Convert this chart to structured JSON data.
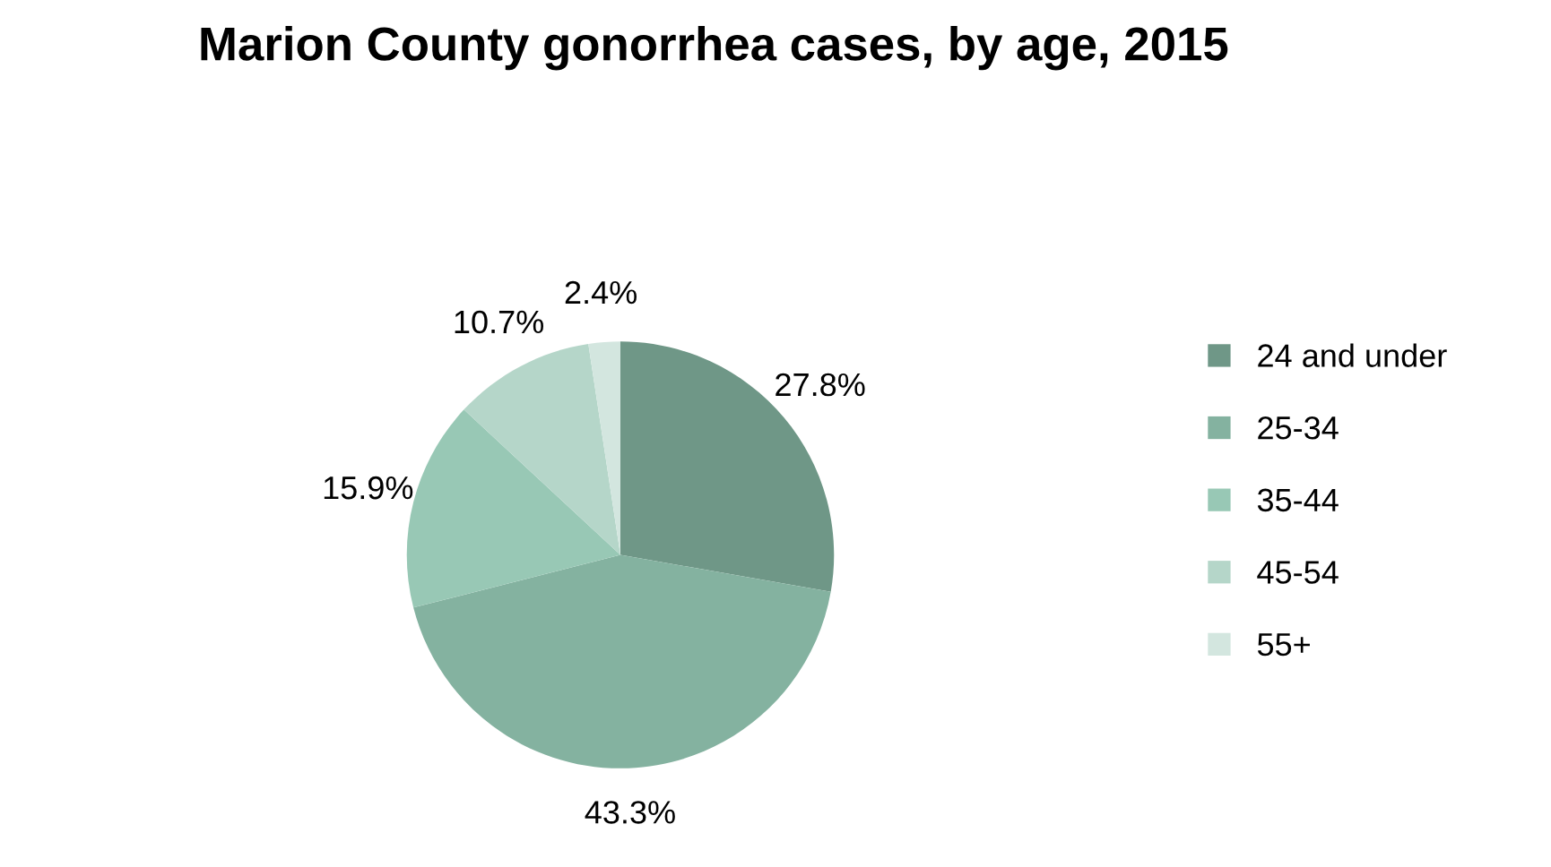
{
  "chart_data": {
    "type": "pie",
    "title": "Marion County gonorrhea cases, by age, 2015",
    "categories": [
      "24 and under",
      "25-34",
      "35-44",
      "45-54",
      "55+"
    ],
    "values": [
      27.8,
      43.3,
      15.9,
      10.7,
      2.4
    ],
    "value_labels": [
      "27.8%",
      "43.3%",
      "15.9%",
      "10.7%",
      "2.4%"
    ],
    "colors": [
      "#6f9787",
      "#84b2a0",
      "#98c8b5",
      "#b5d6c9",
      "#d3e6df"
    ],
    "legend": "right"
  }
}
